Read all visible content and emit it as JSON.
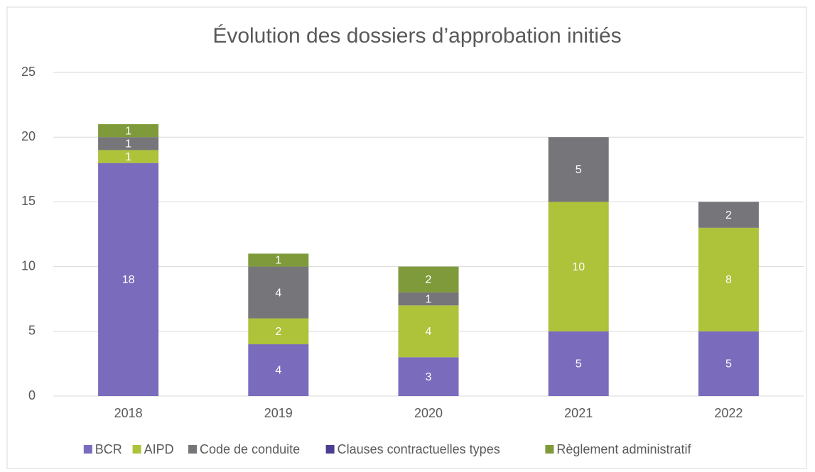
{
  "chart_data": {
    "type": "stacked_bar",
    "title": "Évolution des dossiers d’approbation initiés",
    "categories": [
      "2018",
      "2019",
      "2020",
      "2021",
      "2022"
    ],
    "series": [
      {
        "name": "BCR",
        "color": "#7a6bbd",
        "values": [
          18,
          4,
          3,
          5,
          5
        ]
      },
      {
        "name": "AIPD",
        "color": "#aec23a",
        "values": [
          1,
          2,
          4,
          10,
          8
        ]
      },
      {
        "name": "Code de conduite",
        "color": "#76767a",
        "values": [
          1,
          4,
          1,
          5,
          2
        ]
      },
      {
        "name": "Clauses contractuelles types",
        "color": "#4b3d8f",
        "values": [
          0,
          0,
          0,
          0,
          0
        ]
      },
      {
        "name": "Règlement administratif",
        "color": "#7f9a3a",
        "values": [
          1,
          1,
          2,
          0,
          0
        ]
      }
    ],
    "ylim": [
      0,
      25
    ],
    "yticks": [
      0,
      5,
      10,
      15,
      20,
      25
    ],
    "grid": true,
    "legend": "bottom"
  }
}
